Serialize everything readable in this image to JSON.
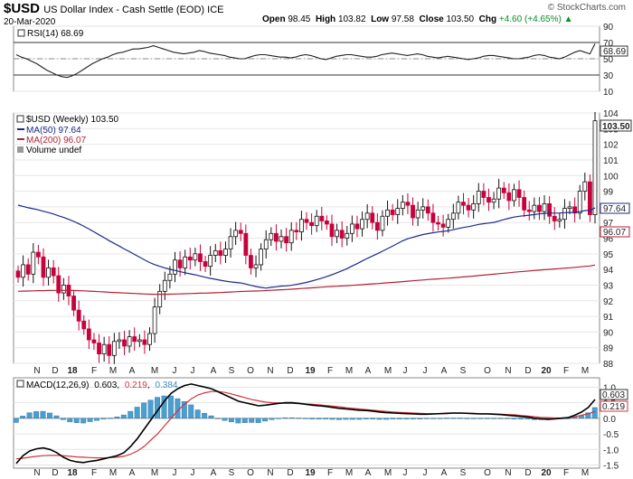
{
  "header": {
    "symbol": "$USD",
    "description": "US Dollar Index - Cash Settle (EOD) ICE",
    "date": "20-Mar-2020",
    "open_label": "Open",
    "open": "98.45",
    "high_label": "High",
    "high": "103.82",
    "low_label": "Low",
    "low": "97.58",
    "close_label": "Close",
    "close": "103.50",
    "chg_label": "Chg",
    "chg": "+4.60 (+4.65%)",
    "chg_arrow": "▲",
    "brand": "© StockCharts.com",
    "colors": {
      "up": "#0a8f24"
    }
  },
  "rsi_panel": {
    "legend": "RSI(14) 68.69",
    "current_label": "68.69",
    "ticks": [
      "90",
      "70",
      "50",
      "30",
      "10"
    ]
  },
  "price_panel": {
    "legend_symbol": "$USD (Weekly) 103.50",
    "legend_ma50": "MA(50) 97.64",
    "legend_ma200": "MA(200) 96.07",
    "legend_volume": "Volume undef",
    "label_close": "103.50",
    "label_ma50": "97.64",
    "label_ma200": "96.07",
    "colors": {
      "up": "#111111",
      "down": "#c8003c",
      "ma50": "#1b2a8a",
      "ma200": "#b22234"
    }
  },
  "macd_panel": {
    "legend_prefix": "MACD(12,26,9)",
    "legend_macd": "0.603",
    "legend_signal": "0.219",
    "legend_hist": "0.384",
    "label_macd": "0.603",
    "label_signal": "0.219",
    "ticks": [
      "1.0",
      "0.5",
      "0.0",
      "-0.5",
      "-1.0",
      "-1.5"
    ],
    "colors": {
      "macd": "#000000",
      "signal": "#d0343c",
      "hist": "#4a9ed0"
    }
  },
  "x_axis_labels": [
    "N",
    "D",
    "18",
    "F",
    "M",
    "A",
    "M",
    "J",
    "J",
    "A",
    "S",
    "O",
    "N",
    "D",
    "19",
    "F",
    "M",
    "A",
    "M",
    "J",
    "J",
    "A",
    "S",
    "O",
    "N",
    "D",
    "20",
    "F",
    "M"
  ],
  "chart_data": [
    {
      "type": "line",
      "title": "RSI(14) 68.69",
      "ylim": [
        10,
        90
      ],
      "reference_lines": [
        30,
        70
      ],
      "current": 68.69,
      "series": [
        {
          "name": "RSI(14)",
          "values": [
            55,
            52,
            50,
            47,
            44,
            40,
            36,
            33,
            30,
            28,
            27,
            29,
            32,
            36,
            40,
            44,
            47,
            50,
            52,
            55,
            57,
            58,
            60,
            62,
            62,
            63,
            64,
            66,
            64,
            62,
            60,
            58,
            57,
            56,
            57,
            58,
            60,
            59,
            57,
            56,
            55,
            54,
            52,
            51,
            50,
            50,
            52,
            54,
            55,
            55,
            54,
            53,
            52,
            52,
            51,
            52,
            54,
            55,
            54,
            52,
            50,
            49,
            51,
            53,
            54,
            55,
            55,
            54,
            53,
            52,
            52,
            53,
            55,
            56,
            57,
            56,
            55,
            54,
            55,
            56,
            55,
            53,
            52,
            51,
            52,
            53,
            52,
            51,
            50,
            49,
            50,
            51,
            53,
            54,
            54,
            53,
            52,
            51,
            50,
            50,
            51,
            52,
            54,
            55,
            54,
            52,
            51,
            50,
            52,
            55,
            58,
            60,
            58,
            56,
            68.69
          ]
        }
      ]
    },
    {
      "type": "line",
      "title": "$USD (Weekly) 103.50",
      "ylim": [
        88,
        104
      ],
      "series": [
        {
          "name": "$USD (Weekly)",
          "style": "ohlc",
          "close": [
            93.5,
            94.3,
            93.7,
            95.1,
            94.8,
            93.5,
            94.1,
            93.6,
            92.5,
            93.0,
            92.3,
            91.4,
            90.7,
            90.2,
            89.5,
            89.3,
            88.6,
            89.2,
            88.5,
            89.4,
            89.5,
            89.1,
            89.7,
            89.4,
            89.5,
            89.2,
            89.9,
            91.6,
            92.6,
            93.3,
            93.7,
            94.6,
            94.1,
            94.8,
            94.6,
            95.0,
            94.5,
            94.2,
            94.9,
            95.2,
            94.9,
            95.3,
            96.1,
            96.5,
            96.3,
            94.9,
            94.1,
            94.3,
            95.3,
            95.9,
            96.3,
            95.8,
            96.1,
            95.7,
            96.5,
            96.4,
            97.2,
            97.0,
            96.8,
            97.4,
            97.1,
            96.9,
            96.1,
            96.5,
            96.0,
            96.3,
            96.9,
            96.6,
            97.2,
            97.6,
            97.0,
            96.5,
            97.4,
            97.8,
            97.5,
            97.9,
            98.3,
            98.1,
            97.3,
            97.8,
            98.0,
            97.6,
            97.0,
            96.9,
            96.7,
            97.2,
            97.6,
            98.3,
            98.1,
            97.8,
            98.2,
            99.0,
            98.6,
            98.3,
            98.5,
            99.2,
            98.9,
            98.4,
            99.1,
            98.6,
            97.8,
            97.7,
            98.1,
            97.7,
            98.2,
            97.4,
            97.1,
            97.2,
            97.9,
            98.0,
            97.6,
            99.0,
            99.6,
            97.5,
            103.5
          ]
        },
        {
          "name": "MA(50)",
          "current": 97.64
        },
        {
          "name": "MA(200)",
          "current": 96.07
        }
      ]
    },
    {
      "type": "line",
      "title": "MACD(12,26,9)",
      "ylim": [
        -1.6,
        1.3
      ],
      "series": [
        {
          "name": "MACD",
          "current": 0.603,
          "values": [
            -1.45,
            -1.2,
            -1.05,
            -0.98,
            -0.95,
            -1.0,
            -1.1,
            -1.25,
            -1.35,
            -1.4,
            -1.42,
            -1.38,
            -1.35,
            -1.3,
            -1.25,
            -1.2,
            -1.1,
            -0.9,
            -0.65,
            -0.35,
            -0.05,
            0.25,
            0.55,
            0.8,
            0.95,
            1.05,
            1.1,
            1.05,
            1.0,
            0.95,
            0.85,
            0.75,
            0.65,
            0.55,
            0.5,
            0.45,
            0.4,
            0.42,
            0.45,
            0.48,
            0.5,
            0.5,
            0.48,
            0.45,
            0.42,
            0.4,
            0.38,
            0.35,
            0.32,
            0.3,
            0.28,
            0.26,
            0.25,
            0.23,
            0.2,
            0.18,
            0.17,
            0.16,
            0.15,
            0.14,
            0.13,
            0.13,
            0.14,
            0.15,
            0.16,
            0.17,
            0.17,
            0.16,
            0.15,
            0.14,
            0.14,
            0.13,
            0.12,
            0.1,
            0.08,
            0.06,
            0.04,
            0.0,
            -0.02,
            -0.03,
            -0.02,
            0.0,
            0.02,
            0.1,
            0.2,
            0.35,
            0.603
          ]
        },
        {
          "name": "Signal",
          "current": 0.219,
          "values": [
            -1.3,
            -1.28,
            -1.25,
            -1.22,
            -1.2,
            -1.19,
            -1.19,
            -1.2,
            -1.22,
            -1.24,
            -1.25,
            -1.26,
            -1.27,
            -1.27,
            -1.26,
            -1.25,
            -1.22,
            -1.15,
            -1.05,
            -0.9,
            -0.7,
            -0.5,
            -0.25,
            0.0,
            0.25,
            0.45,
            0.62,
            0.75,
            0.82,
            0.86,
            0.86,
            0.83,
            0.78,
            0.72,
            0.66,
            0.6,
            0.56,
            0.52,
            0.5,
            0.49,
            0.48,
            0.48,
            0.47,
            0.46,
            0.45,
            0.43,
            0.41,
            0.39,
            0.37,
            0.34,
            0.32,
            0.3,
            0.28,
            0.26,
            0.24,
            0.22,
            0.2,
            0.19,
            0.18,
            0.17,
            0.16,
            0.15,
            0.15,
            0.15,
            0.15,
            0.16,
            0.16,
            0.16,
            0.16,
            0.15,
            0.15,
            0.14,
            0.13,
            0.12,
            0.11,
            0.09,
            0.07,
            0.05,
            0.03,
            0.02,
            0.01,
            0.01,
            0.02,
            0.05,
            0.1,
            0.15,
            0.219
          ]
        }
      ]
    }
  ]
}
